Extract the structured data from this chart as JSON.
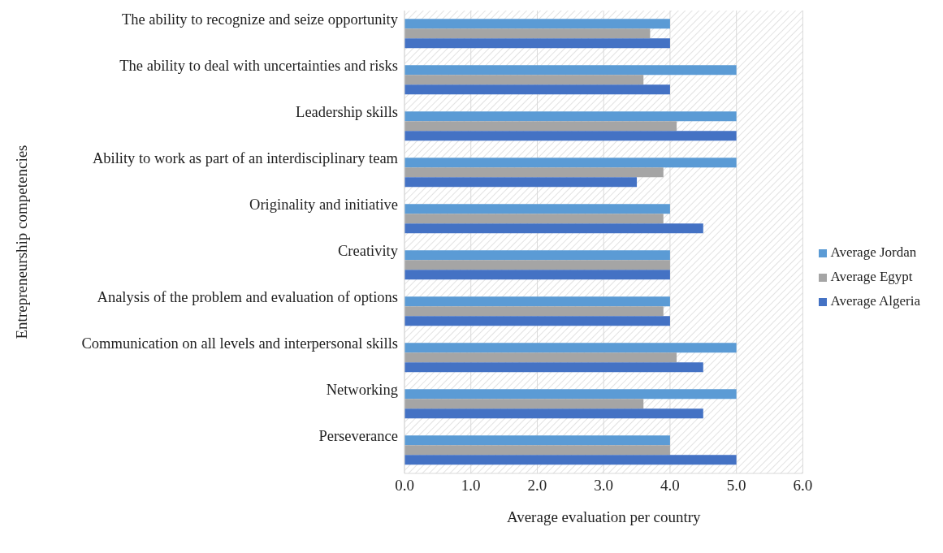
{
  "chart_data": {
    "type": "bar",
    "orientation": "horizontal",
    "xlabel": "Average evaluation per country",
    "ylabel": "Entrepreneurship competencies",
    "categories": [
      "The ability to recognize and seize opportunity",
      "The ability to deal with uncertainties and risks",
      "Leadership skills",
      "Ability to work as part of an interdisciplinary team",
      "Originality and initiative",
      "Creativity",
      "Analysis of the problem and evaluation of options",
      "Communication on all levels and interpersonal skills",
      "Networking",
      "Perseverance"
    ],
    "series": [
      {
        "name": "Average Jordan",
        "color": "#5b9bd5",
        "values": [
          4,
          5,
          5,
          5,
          4,
          4,
          4,
          5,
          5,
          4
        ]
      },
      {
        "name": "Average Egypt",
        "color": "#a5a5a5",
        "values": [
          3.7,
          3.6,
          4.1,
          3.9,
          3.9,
          4,
          3.9,
          4.1,
          3.6,
          4
        ]
      },
      {
        "name": "Average Algeria",
        "color": "#4472c4",
        "values": [
          4,
          4,
          5,
          3.5,
          4.5,
          4,
          4,
          4.5,
          4.5,
          5
        ]
      }
    ],
    "xlim": [
      0,
      6
    ],
    "xticks": [
      {
        "value": 0,
        "label": "0.0"
      },
      {
        "value": 1,
        "label": "1.0"
      },
      {
        "value": 2,
        "label": "2.0"
      },
      {
        "value": 3,
        "label": "3.0"
      },
      {
        "value": 4,
        "label": "4.0"
      },
      {
        "value": 5,
        "label": "5.0"
      },
      {
        "value": 6,
        "label": "6.0"
      }
    ],
    "grid": "x",
    "legend": "right"
  }
}
